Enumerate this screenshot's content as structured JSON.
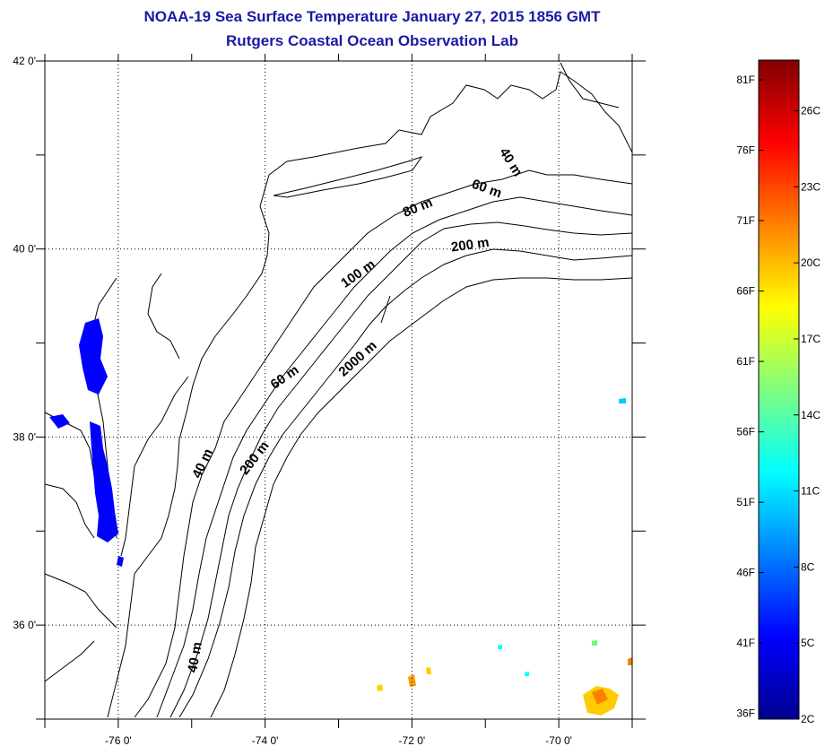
{
  "title_line1": "NOAA-19 Sea Surface Temperature January 27, 2015 1856 GMT",
  "title_line2": "Rutgers Coastal Ocean Observation Lab",
  "map": {
    "lon_ticks": [
      {
        "lon": -76,
        "label": "-76 0'"
      },
      {
        "lon": -74,
        "label": "-74 0'"
      },
      {
        "lon": -72,
        "label": "-72 0'"
      },
      {
        "lon": -70,
        "label": "-70 0'"
      }
    ],
    "lat_ticks": [
      {
        "lat": 42,
        "label": "42 0'"
      },
      {
        "lat": 40,
        "label": "40 0'"
      },
      {
        "lat": 38,
        "label": "38 0'"
      },
      {
        "lat": 36,
        "label": "36 0'"
      }
    ],
    "lon_range": [
      -77,
      -69
    ],
    "lat_range": [
      35,
      42
    ],
    "contour_labels": [
      {
        "text": "40 m",
        "lon": -70.7,
        "lat": 40.9,
        "rot": 58
      },
      {
        "text": "60 m",
        "lon": -71.0,
        "lat": 40.6,
        "rot": 20
      },
      {
        "text": "80 m",
        "lon": -71.9,
        "lat": 40.4,
        "rot": -22
      },
      {
        "text": "200 m",
        "lon": -71.2,
        "lat": 40.0,
        "rot": -8
      },
      {
        "text": "100 m",
        "lon": -72.7,
        "lat": 39.7,
        "rot": -35
      },
      {
        "text": "2000 m",
        "lon": -72.7,
        "lat": 38.8,
        "rot": -42
      },
      {
        "text": "60 m",
        "lon": -73.7,
        "lat": 38.6,
        "rot": -35
      },
      {
        "text": "200 m",
        "lon": -74.1,
        "lat": 37.75,
        "rot": -52
      },
      {
        "text": "40 m",
        "lon": -74.8,
        "lat": 37.7,
        "rot": -65
      },
      {
        "text": "40 m",
        "lon": -74.9,
        "lat": 35.65,
        "rot": -80
      }
    ]
  },
  "colorbar": {
    "colors": [
      "#00008f",
      "#0000ff",
      "#0080ff",
      "#00ffff",
      "#80ff80",
      "#ffff00",
      "#ff8000",
      "#ff0000",
      "#800000"
    ],
    "min_c": 2,
    "max_c": 28,
    "f_labels": [
      "36F",
      "41F",
      "46F",
      "51F",
      "56F",
      "61F",
      "66F",
      "71F",
      "76F",
      "81F"
    ],
    "c_labels": [
      "2C",
      "5C",
      "8C",
      "11C",
      "14C",
      "17C",
      "20C",
      "23C",
      "26C"
    ]
  }
}
